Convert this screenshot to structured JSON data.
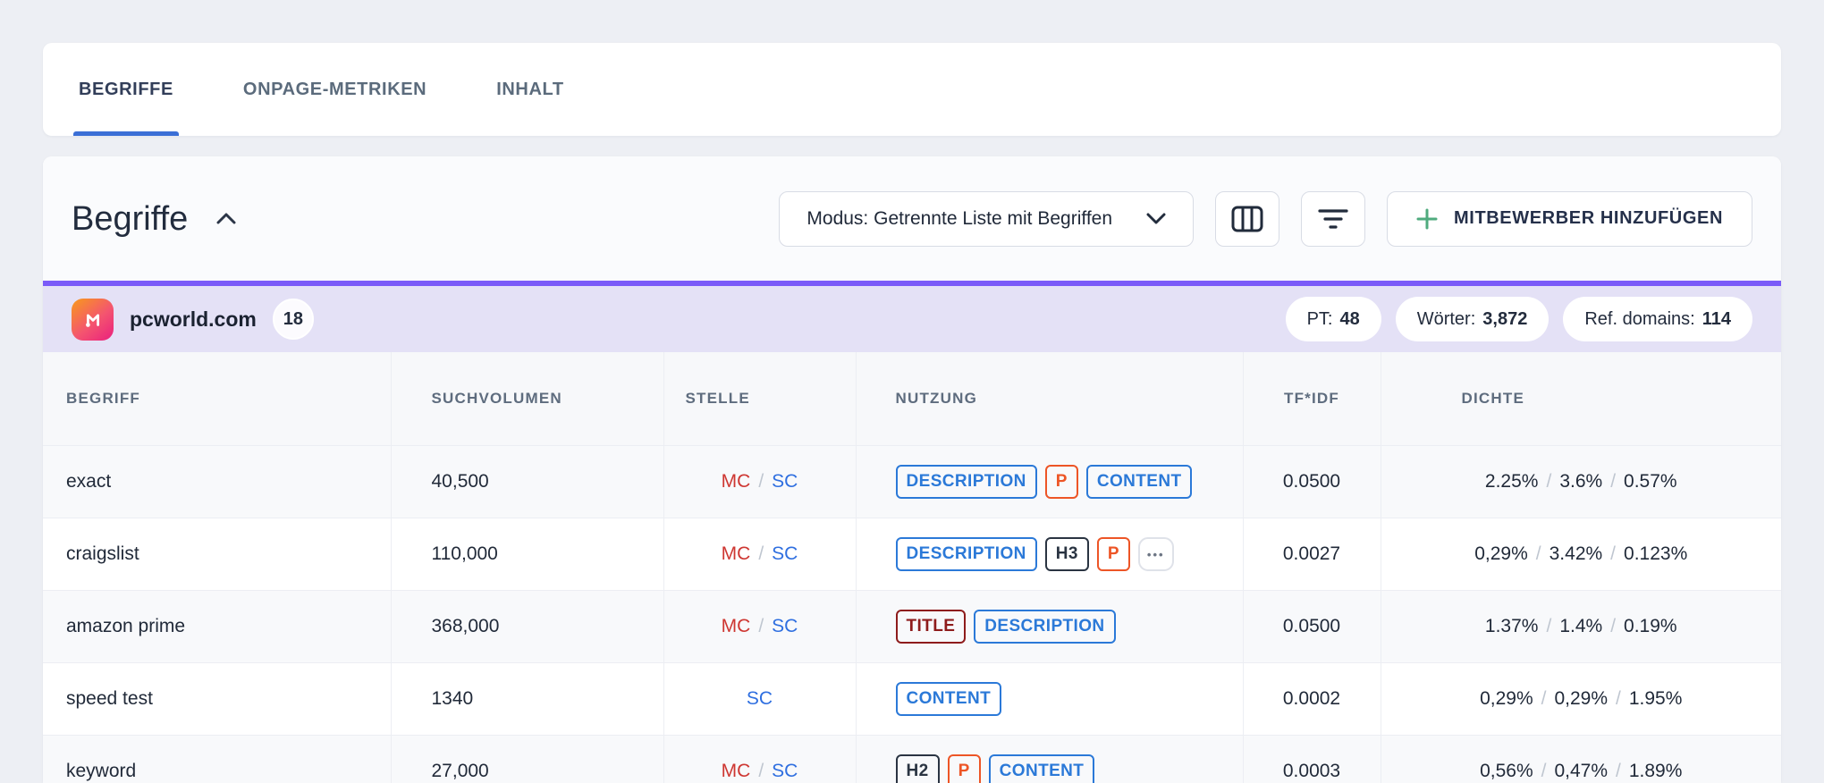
{
  "tabs": [
    {
      "label": "BEGRIFFE",
      "active": true
    },
    {
      "label": "ONPAGE-METRIKEN",
      "active": false
    },
    {
      "label": "INHALT",
      "active": false
    }
  ],
  "toolbar": {
    "title": "Begriffe",
    "mode_label": "Modus: Getrennte Liste mit Begriffen",
    "add_competitor_label": "MITBEWERBER HINZUFÜGEN"
  },
  "icons": {
    "collapse": "chevron-up",
    "select_caret": "chevron-down",
    "columns_button": "columns-layout",
    "filter_button": "filter-lines",
    "add_button": "plus",
    "favicon": "m-note-logo",
    "more": "ellipsis-dots"
  },
  "domain": {
    "name": "pcworld.com",
    "count": "18",
    "stats": [
      {
        "key": "pt",
        "label": "PT:",
        "value": "48"
      },
      {
        "key": "woerter",
        "label": "Wörter:",
        "value": "3,872"
      },
      {
        "key": "ref-domains",
        "label": "Ref. domains:",
        "value": "114"
      }
    ]
  },
  "table": {
    "separator": "/",
    "columns": [
      {
        "key": "keyword",
        "label": "BEGRIFF"
      },
      {
        "key": "volume",
        "label": "SUCHVOLUMEN"
      },
      {
        "key": "stelle",
        "label": "STELLE"
      },
      {
        "key": "usage",
        "label": "NUTZUNG"
      },
      {
        "key": "tfidf",
        "label": "TF*IDF"
      },
      {
        "key": "dichte",
        "label": "DICHTE"
      }
    ],
    "rows": [
      {
        "keyword": "exact",
        "volume": "40,500",
        "stelle": [
          "MC",
          "SC"
        ],
        "usage": [
          {
            "label": "DESCRIPTION",
            "type": "blue"
          },
          {
            "label": "P",
            "type": "orange"
          },
          {
            "label": "CONTENT",
            "type": "blue"
          }
        ],
        "tfidf": "0.0500",
        "density": [
          "2.25%",
          "3.6%",
          "0.57%"
        ]
      },
      {
        "keyword": "craigslist",
        "volume": "110,000",
        "stelle": [
          "MC",
          "SC"
        ],
        "usage": [
          {
            "label": "DESCRIPTION",
            "type": "blue"
          },
          {
            "label": "H3",
            "type": "dark"
          },
          {
            "label": "P",
            "type": "orange"
          },
          {
            "label": "•••",
            "type": "more"
          }
        ],
        "tfidf": "0.0027",
        "density": [
          "0,29%",
          "3.42%",
          "0.123%"
        ]
      },
      {
        "keyword": "amazon prime",
        "volume": "368,000",
        "stelle": [
          "MC",
          "SC"
        ],
        "usage": [
          {
            "label": "TITLE",
            "type": "maroon"
          },
          {
            "label": "DESCRIPTION",
            "type": "blue"
          }
        ],
        "tfidf": "0.0500",
        "density": [
          "1.37%",
          "1.4%",
          "0.19%"
        ]
      },
      {
        "keyword": "speed test",
        "volume": "1340",
        "stelle": [
          "SC"
        ],
        "usage": [
          {
            "label": "CONTENT",
            "type": "blue"
          }
        ],
        "tfidf": "0.0002",
        "density": [
          "0,29%",
          "0,29%",
          "1.95%"
        ]
      },
      {
        "keyword": "keyword",
        "volume": "27,000",
        "stelle": [
          "MC",
          "SC"
        ],
        "usage": [
          {
            "label": "H2",
            "type": "dark"
          },
          {
            "label": "P",
            "type": "orange"
          },
          {
            "label": "CONTENT",
            "type": "blue"
          }
        ],
        "tfidf": "0.0003",
        "density": [
          "0,56%",
          "0,47%",
          "1.89%"
        ]
      }
    ]
  },
  "colors": {
    "accent_purple": "#7A5AF8",
    "tab_underline": "#3B6FD6",
    "badge_blue": "#2B79D8",
    "badge_orange": "#ED5526",
    "badge_dark": "#2A3442",
    "badge_maroon": "#8E1C1C",
    "mc_red": "#CE3732",
    "sc_blue": "#2F6FE0",
    "plus_green": "#4FAB7E",
    "favicon_from": "#F89B1B",
    "favicon_to": "#EA1F7E"
  }
}
